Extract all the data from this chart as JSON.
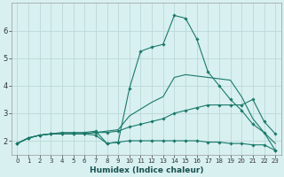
{
  "title": "",
  "xlabel": "Humidex (Indice chaleur)",
  "ylabel": "",
  "bg_color": "#d8f0f0",
  "grid_color": "#bcd8d8",
  "line_color": "#1a7a6a",
  "xlim": [
    -0.5,
    23.5
  ],
  "ylim": [
    1.5,
    7.0
  ],
  "yticks": [
    2,
    3,
    4,
    5,
    6
  ],
  "xticks": [
    0,
    1,
    2,
    3,
    4,
    5,
    6,
    7,
    8,
    9,
    10,
    11,
    12,
    13,
    14,
    15,
    16,
    17,
    18,
    19,
    20,
    21,
    22,
    23
  ],
  "lines": [
    {
      "x": [
        0,
        1,
        2,
        3,
        4,
        5,
        6,
        7,
        8,
        9,
        10,
        11,
        12,
        13,
        14,
        15,
        16,
        17,
        18,
        19,
        20,
        21,
        22,
        23
      ],
      "y": [
        1.9,
        2.1,
        2.2,
        2.25,
        2.25,
        2.25,
        2.25,
        2.2,
        1.9,
        1.95,
        2.0,
        2.0,
        2.0,
        2.0,
        2.0,
        2.0,
        2.0,
        1.95,
        1.95,
        1.9,
        1.9,
        1.85,
        1.85,
        1.65
      ],
      "marker": true
    },
    {
      "x": [
        0,
        1,
        2,
        3,
        4,
        5,
        6,
        7,
        8,
        9,
        10,
        11,
        12,
        13,
        14,
        15,
        16,
        17,
        18,
        19,
        20,
        21,
        22,
        23
      ],
      "y": [
        1.9,
        2.1,
        2.2,
        2.25,
        2.25,
        2.25,
        2.25,
        2.3,
        2.3,
        2.35,
        2.5,
        2.6,
        2.7,
        2.8,
        3.0,
        3.1,
        3.2,
        3.3,
        3.3,
        3.3,
        3.3,
        3.5,
        2.7,
        2.25
      ],
      "marker": true
    },
    {
      "x": [
        0,
        1,
        2,
        3,
        4,
        5,
        6,
        7,
        8,
        9,
        10,
        11,
        12,
        13,
        14,
        15,
        16,
        17,
        18,
        19,
        20,
        21,
        22,
        23
      ],
      "y": [
        1.9,
        2.1,
        2.2,
        2.25,
        2.25,
        2.25,
        2.25,
        2.3,
        2.35,
        2.4,
        2.9,
        3.15,
        3.4,
        3.6,
        4.3,
        4.4,
        4.35,
        4.3,
        4.25,
        4.2,
        3.6,
        2.8,
        2.3,
        1.9
      ],
      "marker": false
    },
    {
      "x": [
        0,
        1,
        2,
        3,
        4,
        5,
        6,
        7,
        8,
        9,
        10,
        11,
        12,
        13,
        14,
        15,
        16,
        17,
        18,
        19,
        20,
        21,
        22,
        23
      ],
      "y": [
        1.9,
        2.1,
        2.2,
        2.25,
        2.3,
        2.3,
        2.3,
        2.35,
        1.9,
        1.95,
        3.9,
        5.25,
        5.4,
        5.5,
        6.55,
        6.45,
        5.7,
        4.5,
        4.0,
        3.5,
        3.1,
        2.6,
        2.3,
        1.65
      ],
      "marker": true
    }
  ]
}
